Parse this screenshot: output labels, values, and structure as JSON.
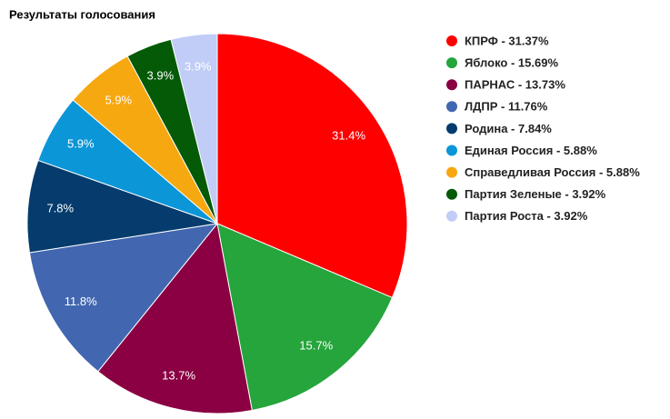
{
  "chart_data": {
    "type": "pie",
    "title": "Результаты голосования",
    "categories": [
      "КПРФ - 31.37%",
      "Яблоко - 15.69%",
      "ПАРНАС - 13.73%",
      "ЛДПР - 11.76%",
      "Родина - 7.84%",
      "Единая Россия - 5.88%",
      "Справедливая Россия - 5.88%",
      "Партия Зеленые - 3.92%",
      "Партия Роста - 3.92%"
    ],
    "values": [
      31.37,
      15.69,
      13.73,
      11.76,
      7.84,
      5.88,
      5.88,
      3.92,
      3.92
    ],
    "value_labels": [
      "31.4%",
      "15.7%",
      "13.7%",
      "11.8%",
      "7.8%",
      "5.9%",
      "5.9%",
      "3.9%",
      "3.9%"
    ],
    "colors": [
      "#ff0000",
      "#25a53b",
      "#8a0043",
      "#4267b0",
      "#053c6d",
      "#0b96d8",
      "#f6a811",
      "#055a07",
      "#c1cdf7"
    ],
    "legend": "right"
  }
}
